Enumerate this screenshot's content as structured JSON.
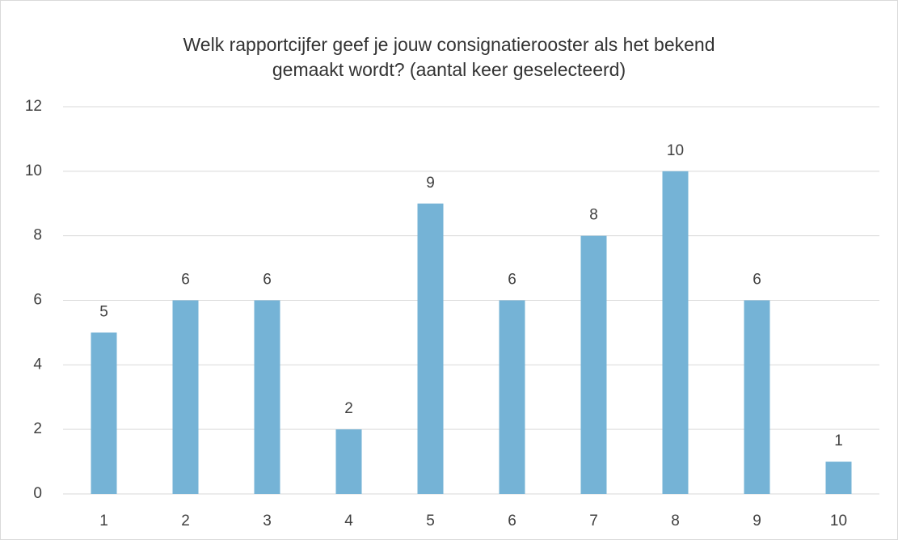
{
  "chart_data": {
    "type": "bar",
    "title": "Welk rapportcijfer geef je jouw consignatierooster als het bekend\ngemaakt wordt? (aantal keer geselecteerd)",
    "categories": [
      "1",
      "2",
      "3",
      "4",
      "5",
      "6",
      "7",
      "8",
      "9",
      "10"
    ],
    "values": [
      5,
      6,
      6,
      2,
      9,
      6,
      8,
      10,
      6,
      1
    ],
    "color": "#75b3d6",
    "ylim": [
      0,
      12
    ],
    "yticks": [
      0,
      2,
      4,
      6,
      8,
      10,
      12
    ],
    "grid": true,
    "data_labels": true
  }
}
